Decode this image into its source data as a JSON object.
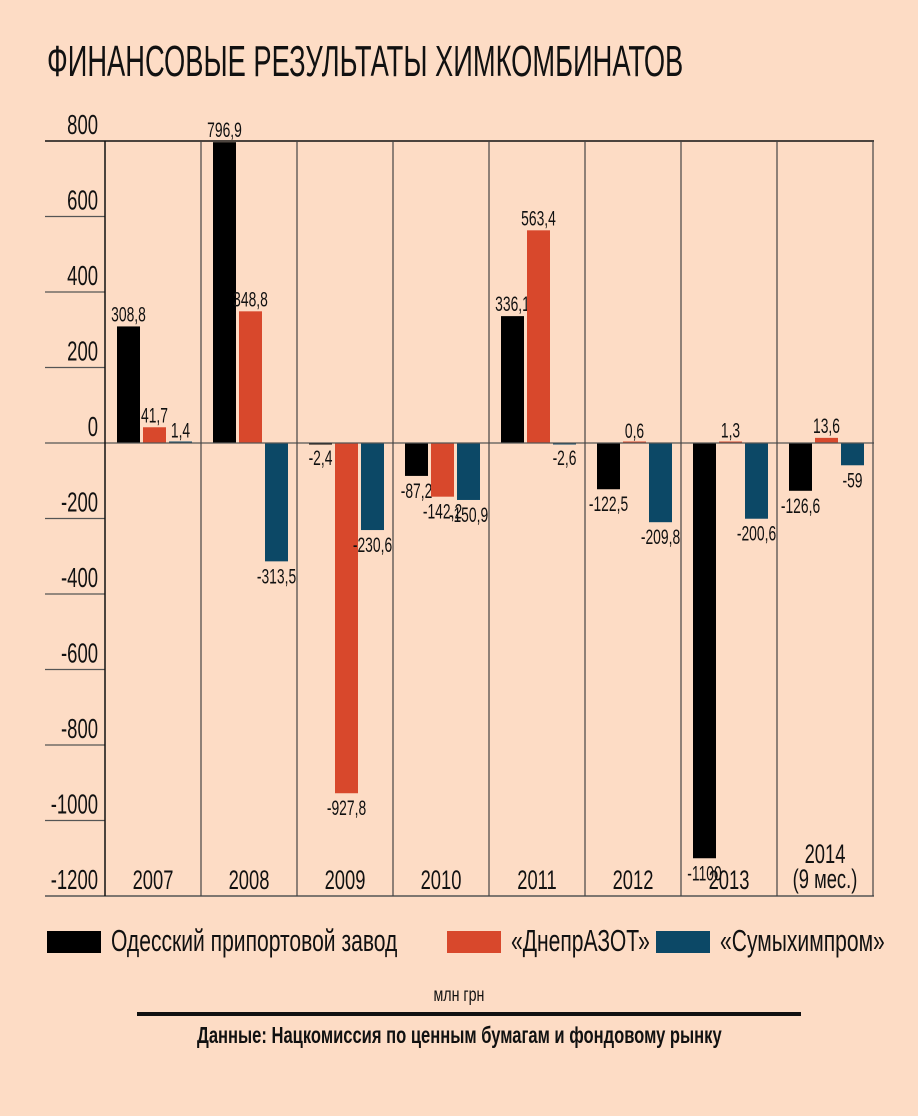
{
  "header": {
    "title": "ФИНАНСОВЫЕ РЕЗУЛЬТАТЫ ХИМКОМБИНАТОВ"
  },
  "colors": {
    "background": "#fddcc5",
    "odessa": "#000000",
    "dneprazot": "#d8482c",
    "sumykhimprom": "#0c4866",
    "grid": "#333333"
  },
  "chart_data": {
    "type": "bar",
    "title": "ФИНАНСОВЫЕ РЕЗУЛЬТАТЫ ХИМКОМБИНАТОВ",
    "xlabel": "",
    "ylabel": "",
    "units": "млн грн",
    "ylim": [
      -1200,
      800
    ],
    "yticks": [
      800,
      600,
      400,
      200,
      0,
      -200,
      -400,
      -600,
      -800,
      -1000,
      -1200
    ],
    "ytick_labels": [
      "800",
      "600",
      "400",
      "200",
      "0",
      "-200",
      "-400",
      "-600",
      "-800",
      "-1000",
      "-1200"
    ],
    "categories": [
      "2007",
      "2008",
      "2009",
      "2010",
      "2011",
      "2012",
      "2013",
      "2014"
    ],
    "category_labels": [
      [
        "2007"
      ],
      [
        "2008"
      ],
      [
        "2009"
      ],
      [
        "2010"
      ],
      [
        "2011"
      ],
      [
        "2012"
      ],
      [
        "2013"
      ],
      [
        "2014",
        "(9 мес.)"
      ]
    ],
    "series": [
      {
        "name": "Одесский припортовой завод",
        "color": "#000000",
        "values": [
          308.8,
          796.9,
          -2.4,
          -87.2,
          336.1,
          -122.5,
          -1100,
          -126.6
        ],
        "labels": [
          "308,8",
          "796,9",
          "-2,4",
          "-87,2",
          "336,1",
          "-122,5",
          "-1100",
          "-126,6"
        ]
      },
      {
        "name": "«ДнепрАЗОТ»",
        "color": "#d8482c",
        "values": [
          41.7,
          348.8,
          -927.8,
          -142.2,
          563.4,
          0.6,
          1.3,
          13.6
        ],
        "labels": [
          "41,7",
          "348,8",
          "-927,8",
          "-142,2",
          "563,4",
          "0,6",
          "1,3",
          "13,6"
        ]
      },
      {
        "name": "«Сумыхимпром»",
        "color": "#0c4866",
        "values": [
          1.4,
          -313.5,
          -230.6,
          -150.9,
          -2.6,
          -209.8,
          -200.6,
          -59
        ],
        "labels": [
          "1,4",
          "-313,5",
          "-230,6",
          "-150,9",
          "-2,6",
          "-209,8",
          "-200,6",
          "-59"
        ]
      }
    ],
    "grid": "vertical separators between years",
    "legend": "bottom"
  },
  "legend": {
    "items": [
      {
        "label": "Одесский припортовой завод",
        "icon": "black-swatch"
      },
      {
        "label": "«ДнепрАЗОТ»",
        "icon": "red-swatch"
      },
      {
        "label": "«Сумыхимпром»",
        "icon": "blue-swatch"
      }
    ]
  },
  "footer": {
    "units": "млн грн",
    "source": "Данные: Нацкомиссия по ценным бумагам и фондовому рынку"
  }
}
